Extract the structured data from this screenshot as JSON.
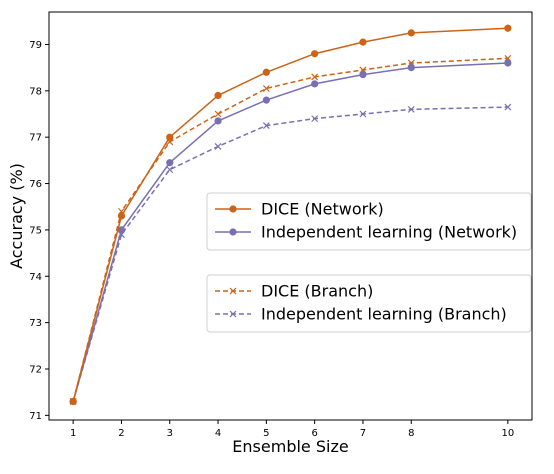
{
  "chart_data": {
    "type": "line",
    "xlabel": "Ensemble Size",
    "ylabel": "Accuracy (%)",
    "x_ticks": [
      "1",
      "2",
      "3",
      "4",
      "5",
      "6",
      "7",
      "8",
      "10"
    ],
    "y_ticks": [
      "71",
      "72",
      "73",
      "74",
      "75",
      "76",
      "77",
      "78",
      "79"
    ],
    "xlim": [
      0.5,
      10.5
    ],
    "ylim": [
      70.9,
      79.7
    ],
    "grid": false,
    "legend_groups": [
      {
        "placement": "center-right",
        "series": [
          0,
          1
        ]
      },
      {
        "placement": "lower-right",
        "series": [
          2,
          3
        ]
      }
    ],
    "series": [
      {
        "name": "DICE (Network)",
        "color": "#cc6316",
        "line_style": "solid",
        "marker": "circle",
        "x": [
          1,
          2,
          3,
          4,
          5,
          6,
          7,
          8,
          10
        ],
        "y": [
          71.3,
          75.3,
          77.0,
          77.9,
          78.4,
          78.8,
          79.05,
          79.25,
          79.35
        ]
      },
      {
        "name": "Independent learning (Network)",
        "color": "#7870b3",
        "line_style": "solid",
        "marker": "circle",
        "x": [
          1,
          2,
          3,
          4,
          5,
          6,
          7,
          8,
          10
        ],
        "y": [
          71.3,
          75.0,
          76.45,
          77.35,
          77.8,
          78.15,
          78.35,
          78.5,
          78.6
        ]
      },
      {
        "name": "DICE (Branch)",
        "color": "#cc6316",
        "line_style": "dashed",
        "marker": "x",
        "x": [
          1,
          2,
          3,
          4,
          5,
          6,
          7,
          8,
          10
        ],
        "y": [
          71.3,
          75.4,
          76.9,
          77.5,
          78.05,
          78.3,
          78.45,
          78.6,
          78.7
        ]
      },
      {
        "name": "Independent learning (Branch)",
        "color": "#7870b3",
        "line_style": "dashed",
        "marker": "x",
        "x": [
          1,
          2,
          3,
          4,
          5,
          6,
          7,
          8,
          10
        ],
        "y": [
          71.3,
          74.9,
          76.3,
          76.8,
          77.25,
          77.4,
          77.5,
          77.6,
          77.65
        ]
      }
    ]
  }
}
